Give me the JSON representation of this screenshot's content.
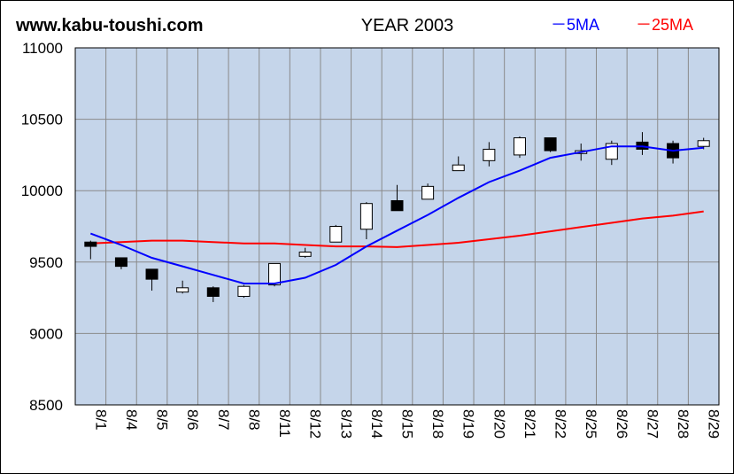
{
  "header": {
    "site": "www.kabu-toushi.com",
    "title": "YEAR 2003",
    "legend_5ma": "－5MA",
    "legend_25ma": "－25MA"
  },
  "colors": {
    "plot_bg": "#c5d5ea",
    "grid": "#8a8a8a",
    "ma5": "#0000ff",
    "ma25": "#ff0000",
    "candle_up_fill": "#ffffff",
    "candle_down_fill": "#000000"
  },
  "chart_data": {
    "type": "candlestick",
    "title": "YEAR 2003",
    "ylim": [
      8500,
      11000
    ],
    "yticks": [
      8500,
      9000,
      9500,
      10000,
      10500,
      11000
    ],
    "categories": [
      "8/1",
      "8/4",
      "8/5",
      "8/6",
      "8/7",
      "8/8",
      "8/11",
      "8/12",
      "8/13",
      "8/14",
      "8/15",
      "8/18",
      "8/19",
      "8/20",
      "8/21",
      "8/22",
      "8/25",
      "8/26",
      "8/27",
      "8/28",
      "8/29"
    ],
    "ohlc": [
      {
        "o": 9640,
        "h": 9650,
        "l": 9520,
        "c": 9610
      },
      {
        "o": 9530,
        "h": 9530,
        "l": 9450,
        "c": 9470
      },
      {
        "o": 9450,
        "h": 9450,
        "l": 9300,
        "c": 9380
      },
      {
        "o": 9290,
        "h": 9370,
        "l": 9280,
        "c": 9320
      },
      {
        "o": 9320,
        "h": 9330,
        "l": 9220,
        "c": 9260
      },
      {
        "o": 9260,
        "h": 9340,
        "l": 9250,
        "c": 9330
      },
      {
        "o": 9340,
        "h": 9490,
        "l": 9330,
        "c": 9490
      },
      {
        "o": 9540,
        "h": 9600,
        "l": 9530,
        "c": 9570
      },
      {
        "o": 9640,
        "h": 9760,
        "l": 9640,
        "c": 9750
      },
      {
        "o": 9730,
        "h": 9920,
        "l": 9660,
        "c": 9910
      },
      {
        "o": 9930,
        "h": 10040,
        "l": 9860,
        "c": 9860
      },
      {
        "o": 9940,
        "h": 10050,
        "l": 9940,
        "c": 10030
      },
      {
        "o": 10140,
        "h": 10240,
        "l": 10140,
        "c": 10180
      },
      {
        "o": 10210,
        "h": 10340,
        "l": 10170,
        "c": 10290
      },
      {
        "o": 10250,
        "h": 10380,
        "l": 10230,
        "c": 10370
      },
      {
        "o": 10370,
        "h": 10370,
        "l": 10270,
        "c": 10280
      },
      {
        "o": 10260,
        "h": 10330,
        "l": 10210,
        "c": 10280
      },
      {
        "o": 10220,
        "h": 10350,
        "l": 10180,
        "c": 10330
      },
      {
        "o": 10340,
        "h": 10410,
        "l": 10250,
        "c": 10290
      },
      {
        "o": 10330,
        "h": 10350,
        "l": 10190,
        "c": 10230
      },
      {
        "o": 10310,
        "h": 10370,
        "l": 10290,
        "c": 10350
      }
    ],
    "series": [
      {
        "name": "5MA",
        "values": [
          9700,
          9620,
          9530,
          9470,
          9410,
          9350,
          9350,
          9390,
          9480,
          9610,
          9720,
          9830,
          9950,
          10060,
          10140,
          10230,
          10270,
          10310,
          10310,
          10280,
          10300
        ]
      },
      {
        "name": "25MA",
        "values": [
          9630,
          9640,
          9650,
          9650,
          9640,
          9630,
          9630,
          9620,
          9610,
          9610,
          9605,
          9620,
          9635,
          9660,
          9685,
          9715,
          9745,
          9775,
          9805,
          9825,
          9855
        ]
      }
    ]
  }
}
